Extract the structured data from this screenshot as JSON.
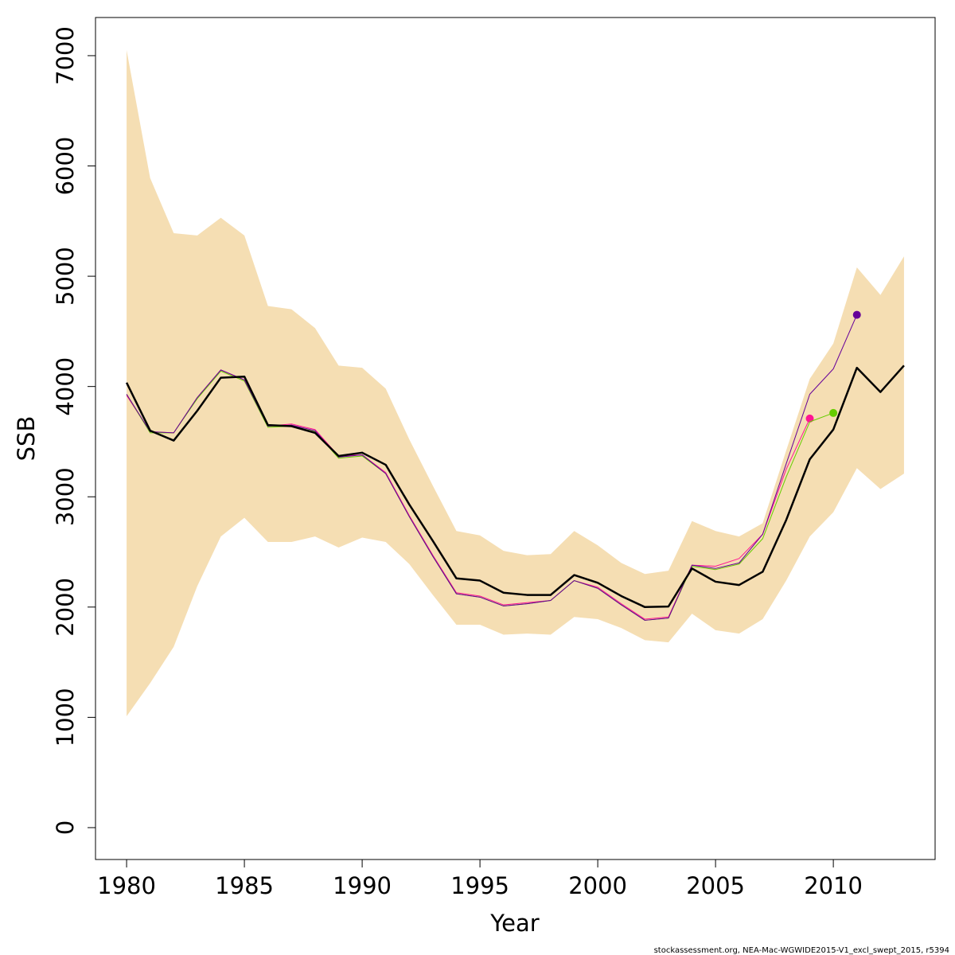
{
  "chart_data": {
    "type": "line",
    "x_label": "Year",
    "y_label": "SSB",
    "footer": "stockassessment.org, NEA-Mac-WGWIDE2015-V1_excl_swept_2015, r5394",
    "x": [
      1980,
      1981,
      1982,
      1983,
      1984,
      1985,
      1986,
      1987,
      1988,
      1989,
      1990,
      1991,
      1992,
      1993,
      1994,
      1995,
      1996,
      1997,
      1998,
      1999,
      2000,
      2001,
      2002,
      2003,
      2004,
      2005,
      2006,
      2007,
      2008,
      2009,
      2010,
      2011,
      2012,
      2013
    ],
    "band": {
      "color": "#f5deb3",
      "upper": [
        7050,
        5890,
        5390,
        5370,
        5530,
        5370,
        4730,
        4700,
        4530,
        4190,
        4170,
        3980,
        3520,
        3100,
        2690,
        2650,
        2510,
        2470,
        2480,
        2690,
        2560,
        2400,
        2300,
        2330,
        2780,
        2690,
        2640,
        2760,
        3420,
        4070,
        4390,
        5080,
        4830,
        5180
      ],
      "lower": [
        1010,
        1310,
        1640,
        2190,
        2640,
        2810,
        2590,
        2590,
        2640,
        2540,
        2630,
        2590,
        2390,
        2110,
        1840,
        1840,
        1750,
        1760,
        1750,
        1910,
        1890,
        1810,
        1700,
        1680,
        1940,
        1790,
        1760,
        1890,
        2240,
        2640,
        2860,
        3260,
        3070,
        3210
      ]
    },
    "series": [
      {
        "color": "#ff1493",
        "width": 1,
        "end_point": true,
        "values": [
          3920,
          3590,
          3580,
          3900,
          4150,
          4060,
          3640,
          3660,
          3610,
          3370,
          3380,
          3220,
          2830,
          2470,
          2130,
          2100,
          2020,
          2040,
          2060,
          2240,
          2180,
          2030,
          1890,
          1910,
          2380,
          2370,
          2440,
          2660,
          3250,
          3710,
          null,
          null,
          null,
          null
        ]
      },
      {
        "color": "#66cc00",
        "width": 1,
        "end_point": true,
        "values": [
          3930,
          3580,
          3580,
          3890,
          4140,
          4050,
          3630,
          3640,
          3590,
          3350,
          3370,
          3210,
          2820,
          2460,
          2120,
          2090,
          2010,
          2030,
          2060,
          2240,
          2170,
          2020,
          1880,
          1900,
          2370,
          2340,
          2390,
          2620,
          3180,
          3680,
          3760,
          null,
          null,
          null
        ]
      },
      {
        "color": "#660099",
        "width": 1,
        "end_point": true,
        "values": [
          3930,
          3590,
          3580,
          3900,
          4150,
          4060,
          3640,
          3650,
          3600,
          3360,
          3380,
          3210,
          2820,
          2460,
          2120,
          2090,
          2010,
          2030,
          2060,
          2240,
          2170,
          2020,
          1880,
          1900,
          2380,
          2350,
          2400,
          2660,
          3300,
          3930,
          4160,
          4650,
          null,
          null
        ]
      },
      {
        "color": "#000000",
        "width": 2.5,
        "end_point": false,
        "values": [
          4035,
          3600,
          3510,
          3780,
          4080,
          4090,
          3650,
          3640,
          3580,
          3370,
          3400,
          3290,
          2930,
          2600,
          2260,
          2240,
          2130,
          2110,
          2110,
          2290,
          2220,
          2100,
          2000,
          2005,
          2350,
          2230,
          2200,
          2320,
          2790,
          3340,
          3610,
          4170,
          3950,
          4190
        ]
      }
    ],
    "xlim": [
      1978.68,
      2014.32
    ],
    "ylim": [
      -289,
      7346
    ],
    "xticks": [
      1980,
      1985,
      1990,
      1995,
      2000,
      2005,
      2010
    ],
    "yticks": [
      0,
      1000,
      2000,
      3000,
      4000,
      5000,
      6000,
      7000
    ]
  }
}
